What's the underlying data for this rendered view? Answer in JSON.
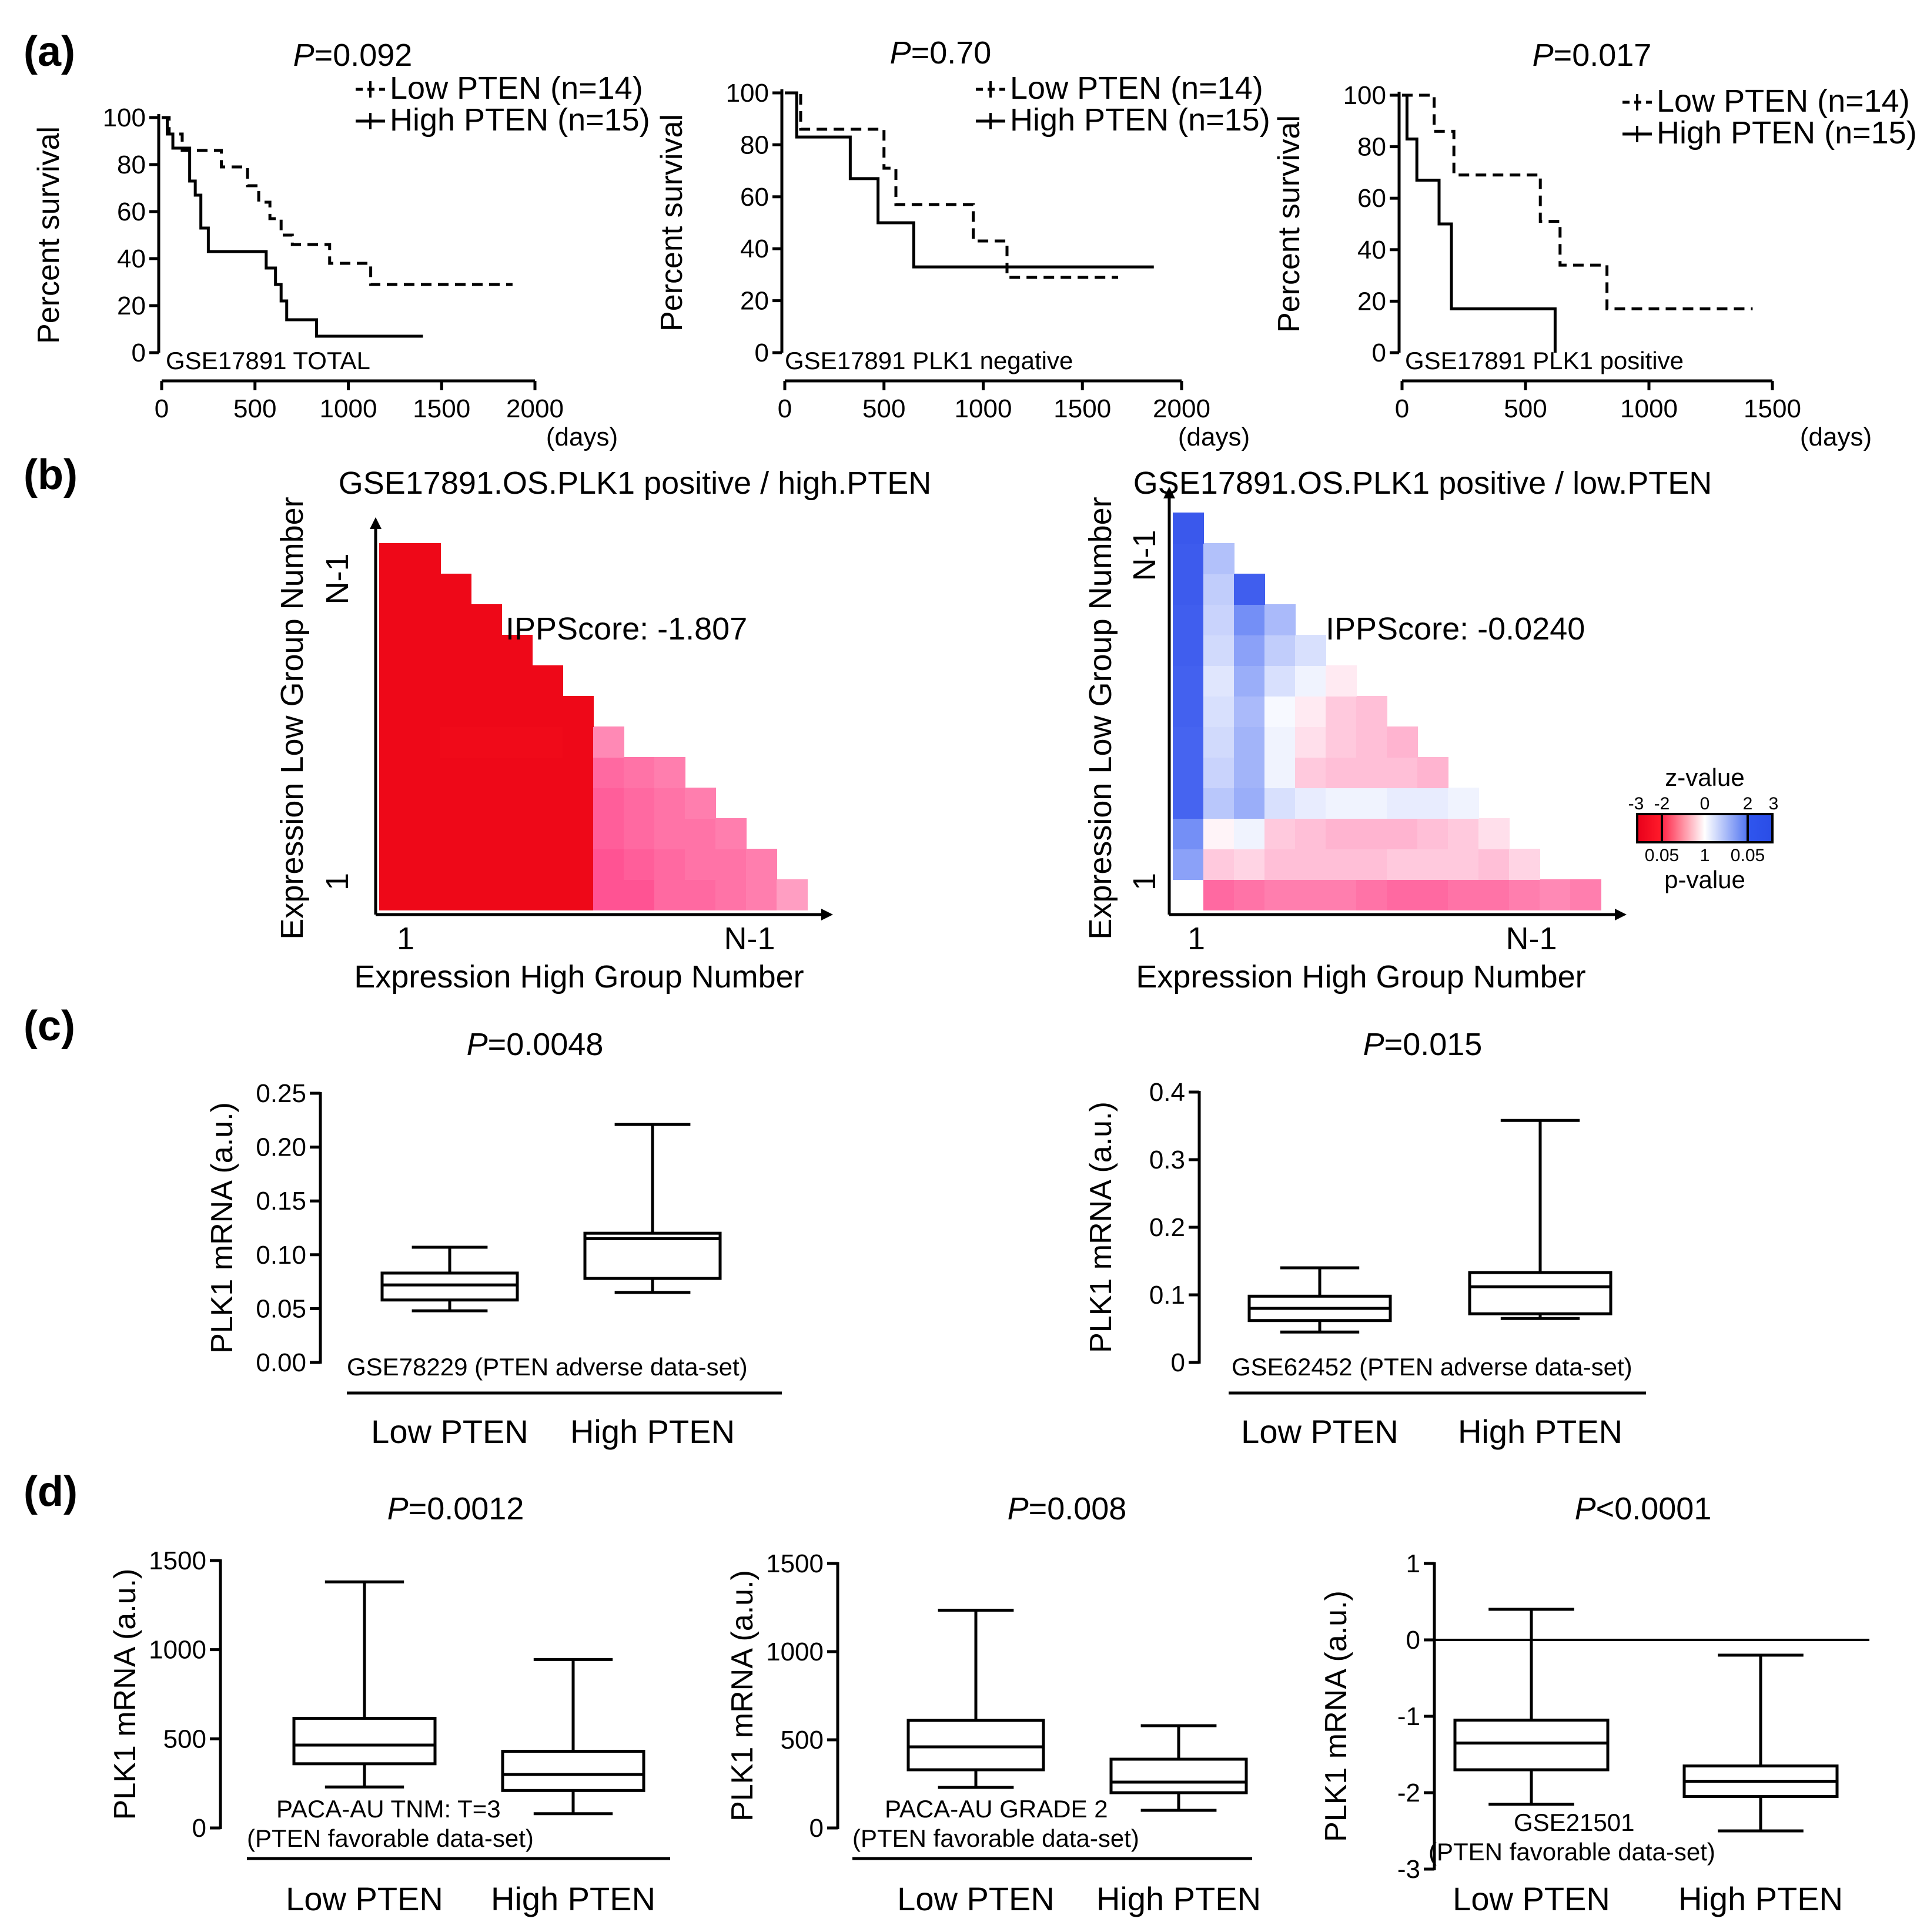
{
  "panel_letters": {
    "a": "(a)",
    "b": "(b)",
    "c": "(c)",
    "d": "(d)"
  },
  "colors": {
    "line": "#000000",
    "heat_red": "#ff1a24",
    "heat_pink": "#ff7fb3",
    "heat_blue": "#3a5cf0",
    "heat_white": "#ffffff"
  },
  "chart_data": [
    {
      "panel": "a",
      "type": "line",
      "subtype": "kaplan-meier",
      "title_p": "P",
      "title_rest": "=0.092",
      "ylabel": "Percent survival",
      "xlabel": "(days)",
      "dataset": "GSE17891 TOTAL",
      "xlim": [
        0,
        2000
      ],
      "ylim": [
        0,
        100
      ],
      "xticks": [
        0,
        500,
        1000,
        1500,
        2000
      ],
      "yticks": [
        0,
        20,
        40,
        60,
        80,
        100
      ],
      "series": [
        {
          "name": "Low PTEN (n=14)",
          "style": "dashed",
          "points": [
            [
              0,
              100
            ],
            [
              40,
              100
            ],
            [
              40,
              93
            ],
            [
              110,
              93
            ],
            [
              110,
              86
            ],
            [
              320,
              86
            ],
            [
              320,
              79
            ],
            [
              460,
              79
            ],
            [
              460,
              71
            ],
            [
              520,
              71
            ],
            [
              520,
              64
            ],
            [
              580,
              64
            ],
            [
              580,
              57
            ],
            [
              640,
              57
            ],
            [
              640,
              50
            ],
            [
              700,
              50
            ],
            [
              700,
              46
            ],
            [
              900,
              46
            ],
            [
              900,
              38
            ],
            [
              1120,
              38
            ],
            [
              1120,
              29
            ],
            [
              1880,
              29
            ]
          ]
        },
        {
          "name": "High PTEN (n=15)",
          "style": "solid",
          "points": [
            [
              0,
              100
            ],
            [
              30,
              100
            ],
            [
              30,
              93
            ],
            [
              60,
              93
            ],
            [
              60,
              87
            ],
            [
              150,
              87
            ],
            [
              150,
              73
            ],
            [
              180,
              73
            ],
            [
              180,
              67
            ],
            [
              210,
              67
            ],
            [
              210,
              53
            ],
            [
              250,
              53
            ],
            [
              250,
              43
            ],
            [
              560,
              43
            ],
            [
              560,
              36
            ],
            [
              610,
              36
            ],
            [
              610,
              29
            ],
            [
              640,
              29
            ],
            [
              640,
              22
            ],
            [
              670,
              22
            ],
            [
              670,
              14
            ],
            [
              830,
              14
            ],
            [
              830,
              7
            ],
            [
              1400,
              7
            ]
          ]
        }
      ]
    },
    {
      "panel": "a",
      "type": "line",
      "subtype": "kaplan-meier",
      "title_p": "P",
      "title_rest": "=0.70",
      "ylabel": "Percent survival",
      "xlabel": "(days)",
      "dataset": "GSE17891 PLK1 negative",
      "xlim": [
        0,
        2000
      ],
      "ylim": [
        0,
        100
      ],
      "xticks": [
        0,
        500,
        1000,
        1500,
        2000
      ],
      "yticks": [
        0,
        20,
        40,
        60,
        80,
        100
      ],
      "series": [
        {
          "name": "Low PTEN (n=14)",
          "style": "dashed",
          "points": [
            [
              0,
              100
            ],
            [
              80,
              100
            ],
            [
              80,
              86
            ],
            [
              500,
              86
            ],
            [
              500,
              71
            ],
            [
              560,
              71
            ],
            [
              560,
              57
            ],
            [
              950,
              57
            ],
            [
              950,
              43
            ],
            [
              1120,
              43
            ],
            [
              1120,
              29
            ],
            [
              1680,
              29
            ]
          ]
        },
        {
          "name": "High PTEN (n=15)",
          "style": "solid",
          "points": [
            [
              0,
              100
            ],
            [
              60,
              100
            ],
            [
              60,
              83
            ],
            [
              330,
              83
            ],
            [
              330,
              67
            ],
            [
              470,
              67
            ],
            [
              470,
              50
            ],
            [
              650,
              50
            ],
            [
              650,
              33
            ],
            [
              1860,
              33
            ]
          ]
        }
      ]
    },
    {
      "panel": "a",
      "type": "line",
      "subtype": "kaplan-meier",
      "title_p": "P",
      "title_rest": "=0.017",
      "ylabel": "Percent survival",
      "xlabel": "(days)",
      "dataset": "GSE17891 PLK1 positive",
      "xlim": [
        0,
        1500
      ],
      "ylim": [
        0,
        100
      ],
      "xticks": [
        0,
        500,
        1000,
        1500
      ],
      "yticks": [
        0,
        20,
        40,
        60,
        80,
        100
      ],
      "series": [
        {
          "name": "Low PTEN (n=14)",
          "style": "dashed",
          "points": [
            [
              0,
              100
            ],
            [
              130,
              100
            ],
            [
              130,
              86
            ],
            [
              210,
              86
            ],
            [
              210,
              69
            ],
            [
              560,
              69
            ],
            [
              560,
              51
            ],
            [
              640,
              51
            ],
            [
              640,
              34
            ],
            [
              830,
              34
            ],
            [
              830,
              17
            ],
            [
              1420,
              17
            ]
          ]
        },
        {
          "name": "High PTEN (n=15)",
          "style": "solid",
          "points": [
            [
              0,
              100
            ],
            [
              20,
              100
            ],
            [
              20,
              83
            ],
            [
              60,
              83
            ],
            [
              60,
              67
            ],
            [
              150,
              67
            ],
            [
              150,
              50
            ],
            [
              200,
              50
            ],
            [
              200,
              17
            ],
            [
              620,
              17
            ],
            [
              620,
              0
            ]
          ]
        }
      ]
    },
    {
      "panel": "b",
      "type": "heatmap",
      "title": "GSE17891.OS.PLK1 positive / high.PTEN",
      "xlabel": "Expression High Group Number",
      "ylabel": "Expression Low Group Number",
      "x_start": "1",
      "x_end": "N-1",
      "y_start": "1",
      "y_end": "N-1",
      "annotation": "IPPScore: -1.807",
      "rows": [
        [
          -2.6,
          -2.6,
          -2.6,
          -2.6,
          -2.6,
          -2.6,
          -2.6,
          -1.6,
          -1.6,
          -1.4,
          -1.4,
          -1.3,
          -1.2,
          -0.9
        ],
        [
          -2.6,
          -2.6,
          -2.6,
          -2.6,
          -2.6,
          -2.6,
          -2.6,
          -1.6,
          -1.5,
          -1.4,
          -1.3,
          -1.3,
          -1.2
        ],
        [
          -2.6,
          -2.6,
          -2.6,
          -2.6,
          -2.6,
          -2.6,
          -2.6,
          -1.5,
          -1.4,
          -1.3,
          -1.3,
          -1.2
        ],
        [
          -2.6,
          -2.6,
          -2.6,
          -2.6,
          -2.6,
          -2.6,
          -2.6,
          -1.5,
          -1.4,
          -1.3,
          -1.2
        ],
        [
          -2.6,
          -2.6,
          -2.6,
          -2.6,
          -2.6,
          -2.6,
          -2.6,
          -1.4,
          -1.3,
          -1.2
        ],
        [
          -2.6,
          -2.6,
          -2.5,
          -2.5,
          -2.5,
          -2.5,
          -2.6,
          -1.1
        ],
        [
          -2.6,
          -2.6,
          -2.6,
          -2.6,
          -2.6,
          -2.6,
          -2.6
        ],
        [
          -2.6,
          -2.6,
          -2.6,
          -2.6,
          -2.6,
          -2.6
        ],
        [
          -2.6,
          -2.6,
          -2.6,
          -2.6,
          -2.6
        ],
        [
          -2.6,
          -2.6,
          -2.6,
          -2.6
        ],
        [
          -2.6,
          -2.6,
          -2.6
        ],
        [
          -2.6,
          -2.6
        ]
      ]
    },
    {
      "panel": "b",
      "type": "heatmap",
      "title": "GSE17891.OS.PLK1 positive / low.PTEN",
      "xlabel": "Expression High Group Number",
      "ylabel": "Expression Low Group Number",
      "x_start": "1",
      "x_end": "N-1",
      "y_start": "1",
      "y_end": "N-1",
      "annotation": "IPPScore: -0.0240",
      "rows": [
        [
          0,
          -1.4,
          -1.3,
          -1.2,
          -1.2,
          -1.2,
          -1.3,
          -1.4,
          -1.4,
          -1.3,
          -1.3,
          -1.2,
          -1.1,
          -1.2
        ],
        [
          1.5,
          -0.5,
          -0.4,
          -0.6,
          -0.6,
          -0.6,
          -0.6,
          -0.5,
          -0.5,
          -0.5,
          -0.6,
          -0.4
        ],
        [
          1.8,
          -0.1,
          0.2,
          -0.5,
          -0.6,
          -0.7,
          -0.7,
          -0.7,
          -0.6,
          -0.5,
          -0.3
        ],
        [
          2.0,
          0.9,
          1.3,
          0.5,
          0.3,
          0.2,
          0.2,
          0.3,
          0.3,
          0.2
        ],
        [
          2.0,
          0.7,
          1.2,
          0.2,
          -0.5,
          -0.6,
          -0.6,
          -0.6,
          -0.7
        ],
        [
          2.0,
          0.6,
          1.2,
          0.2,
          -0.3,
          -0.5,
          -0.6,
          -0.7
        ],
        [
          2.1,
          0.5,
          1.1,
          0.1,
          -0.2,
          -0.5,
          -0.6
        ],
        [
          2.1,
          0.4,
          1.3,
          0.5,
          0.2,
          -0.2
        ],
        [
          2.2,
          0.6,
          1.5,
          0.8,
          0.5
        ],
        [
          2.2,
          0.7,
          1.8,
          1.1
        ],
        [
          2.3,
          0.8,
          2.2
        ],
        [
          2.3,
          1.0
        ],
        [
          2.4
        ]
      ]
    },
    {
      "panel": "b",
      "type": "legend-colorbar",
      "title": "z-value",
      "bottom_title": "p-value",
      "z_ticks": [
        "-3",
        "-2",
        "0",
        "2",
        "3"
      ],
      "p_ticks": [
        "0.05",
        "1",
        "0.05"
      ]
    },
    {
      "panel": "c",
      "type": "box",
      "title_p": "P",
      "title_rest": "=0.0048",
      "ylabel": "PLK1 mRNA (a.u.)",
      "dataset": "GSE78229 (PTEN adverse data-set)",
      "categories": [
        "Low PTEN",
        "High PTEN"
      ],
      "ylim": [
        0,
        0.25
      ],
      "yticks": [
        "0.00",
        "0.05",
        "0.10",
        "0.15",
        "0.20",
        "0.25"
      ],
      "yticks_values": [
        0,
        0.05,
        0.1,
        0.15,
        0.2,
        0.25
      ],
      "boxes": [
        {
          "min": 0.048,
          "q1": 0.058,
          "median": 0.072,
          "q3": 0.083,
          "max": 0.107
        },
        {
          "min": 0.065,
          "q1": 0.078,
          "median": 0.115,
          "q3": 0.12,
          "max": 0.221
        }
      ]
    },
    {
      "panel": "c",
      "type": "box",
      "title_p": "P",
      "title_rest": "=0.015",
      "ylabel": "PLK1 mRNA (a.u.)",
      "dataset": "GSE62452 (PTEN adverse data-set)",
      "categories": [
        "Low PTEN",
        "High PTEN"
      ],
      "ylim": [
        0,
        0.4
      ],
      "yticks": [
        "0",
        "0.1",
        "0.2",
        "0.3",
        "0.4"
      ],
      "yticks_values": [
        0,
        0.1,
        0.2,
        0.3,
        0.4
      ],
      "boxes": [
        {
          "min": 0.045,
          "q1": 0.062,
          "median": 0.08,
          "q3": 0.098,
          "max": 0.14
        },
        {
          "min": 0.065,
          "q1": 0.072,
          "median": 0.112,
          "q3": 0.133,
          "max": 0.358
        }
      ]
    },
    {
      "panel": "d",
      "type": "box",
      "title_p": "P",
      "title_rest": "=0.0012",
      "ylabel": "PLK1 mRNA (a.u.)",
      "dataset": "PACA-AU TNM: T=3",
      "dataset2": "(PTEN favorable data-set)",
      "categories": [
        "Low PTEN",
        "High PTEN"
      ],
      "ylim": [
        0,
        1500
      ],
      "yticks": [
        "0",
        "500",
        "1000",
        "1500"
      ],
      "yticks_values": [
        0,
        500,
        1000,
        1500
      ],
      "boxes": [
        {
          "min": 230,
          "q1": 360,
          "median": 465,
          "q3": 615,
          "max": 1380
        },
        {
          "min": 80,
          "q1": 210,
          "median": 300,
          "q3": 430,
          "max": 945
        }
      ]
    },
    {
      "panel": "d",
      "type": "box",
      "title_p": "P",
      "title_rest": "=0.008",
      "ylabel": "PLK1 mRNA (a.u.)",
      "dataset": "PACA-AU GRADE 2",
      "dataset2": "(PTEN favorable data-set)",
      "categories": [
        "Low PTEN",
        "High PTEN"
      ],
      "ylim": [
        0,
        1500
      ],
      "yticks": [
        "0",
        "500",
        "1000",
        "1500"
      ],
      "yticks_values": [
        0,
        500,
        1000,
        1500
      ],
      "boxes": [
        {
          "min": 230,
          "q1": 330,
          "median": 460,
          "q3": 610,
          "max": 1235
        },
        {
          "min": 100,
          "q1": 200,
          "median": 260,
          "q3": 390,
          "max": 580
        }
      ]
    },
    {
      "panel": "d",
      "type": "box",
      "title_p": "P",
      "title_rest": "<0.0001",
      "ylabel": "PLK1 mRNA (a.u.)",
      "dataset": "GSE21501",
      "dataset2": "(PTEN favorable data-set)",
      "categories": [
        "Low PTEN",
        "High PTEN"
      ],
      "ylim": [
        -3,
        1
      ],
      "yticks": [
        "-3",
        "-2",
        "-1",
        "0",
        "1"
      ],
      "yticks_values": [
        -3,
        -2,
        -1,
        0,
        1
      ],
      "zero_line": true,
      "boxes": [
        {
          "min": -2.15,
          "q1": -1.7,
          "median": -1.35,
          "q3": -1.05,
          "max": 0.4
        },
        {
          "min": -2.5,
          "q1": -2.05,
          "median": -1.85,
          "q3": -1.65,
          "max": -0.2
        }
      ]
    }
  ]
}
